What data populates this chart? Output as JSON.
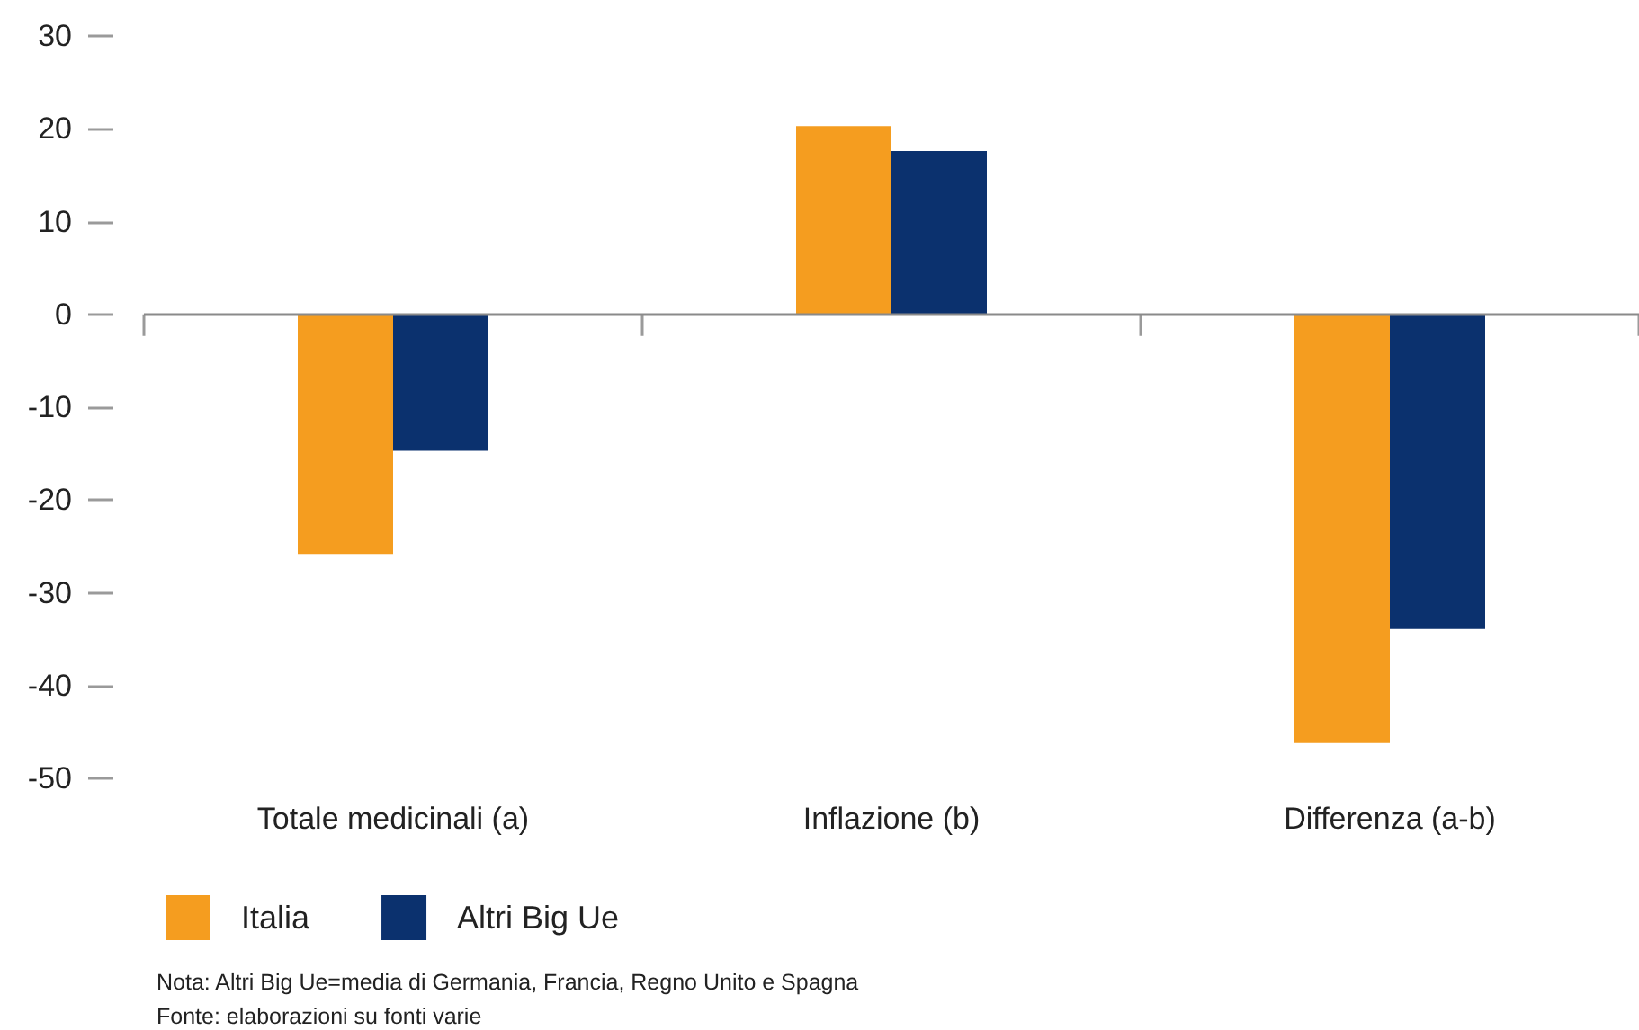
{
  "chart_data": {
    "type": "bar",
    "categories": [
      "Totale medicinali (a)",
      "Inflazione (b)",
      "Differenza (a-b)"
    ],
    "series": [
      {
        "name": "Italia",
        "color": "#f59d1f",
        "values": [
          -25.8,
          20.3,
          -46.2
        ]
      },
      {
        "name": "Altri Big Ue",
        "color": "#0b316e",
        "values": [
          -14.7,
          17.6,
          -33.9
        ]
      }
    ],
    "ylim": [
      -50,
      30
    ],
    "yticks": [
      -50,
      -40,
      -30,
      -20,
      -10,
      0,
      10,
      20,
      30
    ],
    "grid": false,
    "legend": "bottom left",
    "ref_lines": [
      {
        "axis": "y",
        "value": 0,
        "color": "#8a8a8a",
        "line_style": "solid"
      }
    ],
    "annotations": [
      "Nota: Altri Big Ue=media di Germania, Francia, Regno Unito e Spagna",
      "Fonte: elaborazioni su fonti varie"
    ]
  }
}
